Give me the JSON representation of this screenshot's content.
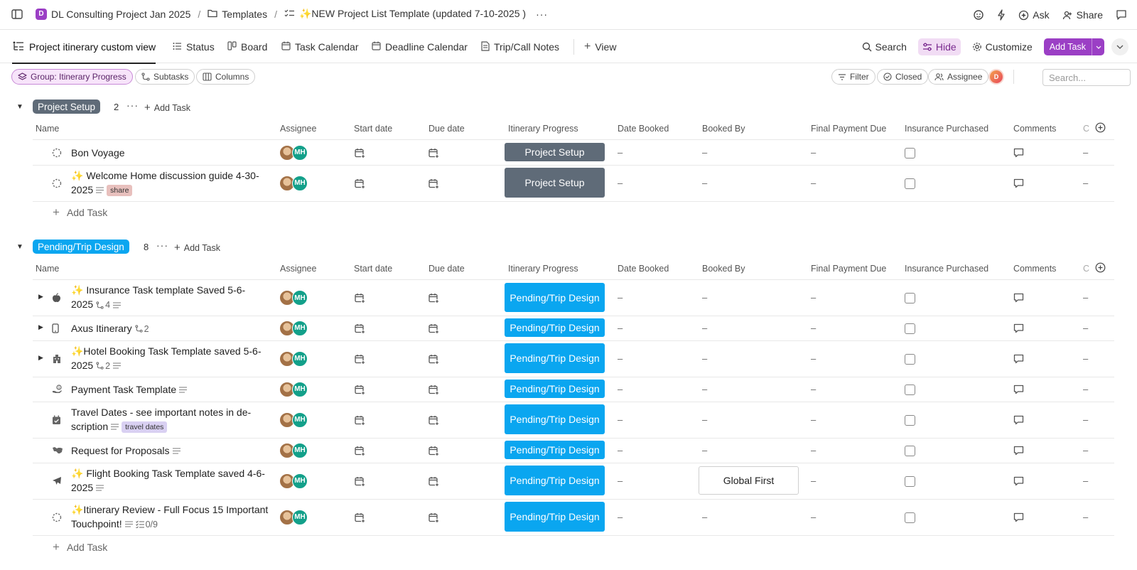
{
  "topbar": {
    "workspace_badge": "D",
    "workspace": "DL Consulting Project Jan 2025",
    "folder": "Templates",
    "list": "✨NEW Project List Template (updated 7-10-2025 )",
    "ask": "Ask",
    "share": "Share"
  },
  "tabs": {
    "active": "Project itinerary custom view",
    "status": "Status",
    "board": "Board",
    "task_calendar": "Task Calendar",
    "deadline_calendar": "Deadline Calendar",
    "trip_notes": "Trip/Call Notes",
    "view": "View",
    "search": "Search",
    "hide": "Hide",
    "customize": "Customize",
    "add_task": "Add Task"
  },
  "filterbar": {
    "group": "Group: Itinerary Progress",
    "subtasks": "Subtasks",
    "columns": "Columns",
    "filter": "Filter",
    "closed": "Closed",
    "assignee": "Assignee",
    "search_placeholder": "Search..."
  },
  "columns": {
    "name": "Name",
    "assignee": "Assignee",
    "start": "Start date",
    "due": "Due date",
    "progress": "Itinerary Progress",
    "booked": "Date Booked",
    "booked_by": "Booked By",
    "final_payment": "Final Payment Due",
    "insurance": "Insurance Purchased",
    "comments": "Comments",
    "extra": "C"
  },
  "avatar_initials": "MH",
  "empty": "–",
  "add_task_group": "Add Task",
  "add_task_row": "Add Task",
  "colors": {
    "accent": "#9b3fc5",
    "setup": "#5f6b78",
    "pending": "#0aa6f0"
  },
  "groups": [
    {
      "name": "Project Setup",
      "count": "2",
      "tasks": [
        {
          "icon": "dashed-circle-icon",
          "line1": "Bon Voyage",
          "status": "Project Setup"
        },
        {
          "icon": "dashed-circle-icon",
          "line1": "✨ Welcome Home discussion guide 4-30-",
          "line2": "2025",
          "tag": "share",
          "status": "Project Setup"
        }
      ]
    },
    {
      "name": "Pending/Trip Design",
      "count": "8",
      "tasks": [
        {
          "icon": "apple-icon",
          "line1": "✨ Insurance Task template Saved 5-6-",
          "line2": "2025",
          "subtasks": "4",
          "status": "Pending/Trip Design"
        },
        {
          "icon": "phone-icon",
          "line1": "Axus Itinerary",
          "subtasks": "2",
          "status": "Pending/Trip Design"
        },
        {
          "icon": "hotel-icon",
          "line1": "✨Hotel Booking Task Template saved 5-6-",
          "line2": "2025",
          "subtasks": "2",
          "status": "Pending/Trip Design"
        },
        {
          "icon": "payment-icon",
          "line1": "Payment Task Template",
          "status": "Pending/Trip Design"
        },
        {
          "icon": "calendar-check-icon",
          "line1": "Travel Dates - see important notes in de-",
          "line2": "scription",
          "tag": "travel dates",
          "status": "Pending/Trip Design"
        },
        {
          "icon": "handshake-icon",
          "line1": "Request for Proposals",
          "status": "Pending/Trip Design"
        },
        {
          "icon": "plane-icon",
          "line1": "✨ Flight Booking Task Template saved 4-6-",
          "line2": "2025",
          "booked_by": "Global First",
          "status": "Pending/Trip Design"
        },
        {
          "icon": "dashed-circle-icon",
          "line1": "✨Itinerary Review - Full Focus 15 Important",
          "line2": "Touchpoint!",
          "checklist": "0/9",
          "status": "Pending/Trip Design"
        }
      ]
    }
  ]
}
